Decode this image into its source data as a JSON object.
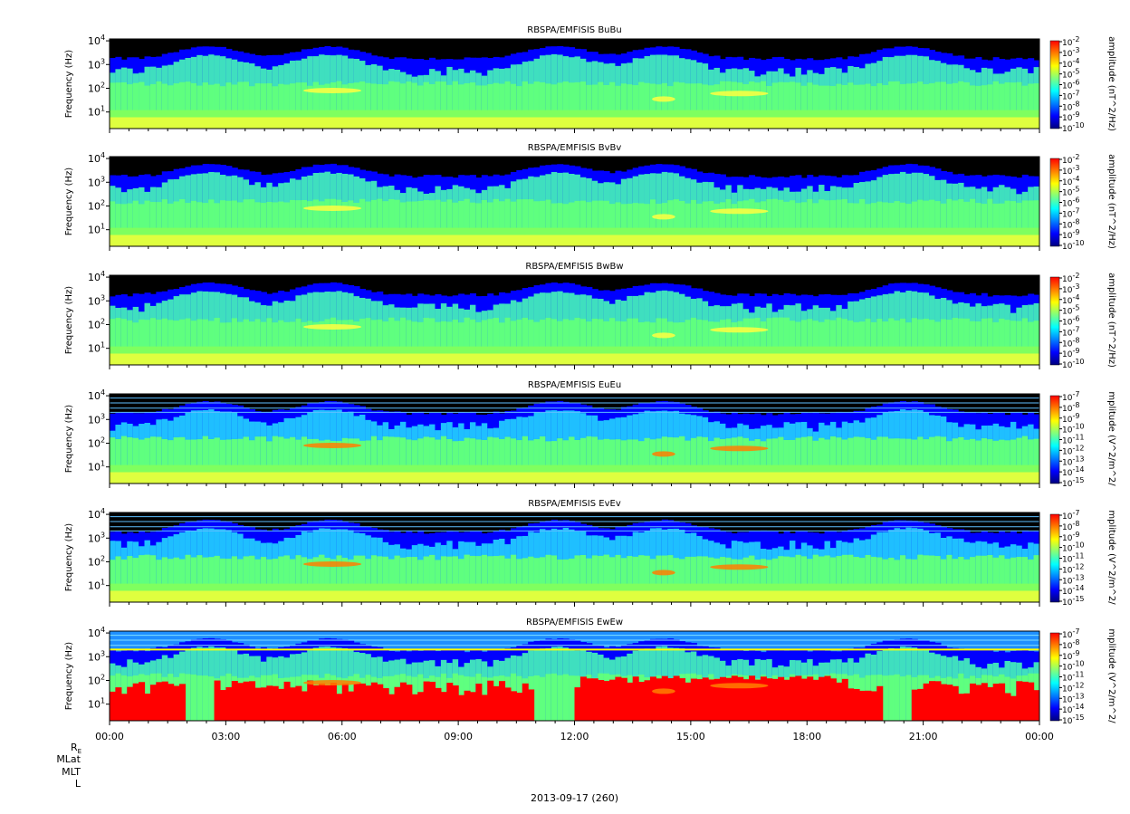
{
  "chart_data": {
    "type": "heatmap",
    "date_label": "2013-09-17 (260)",
    "x_axis": {
      "range": [
        "00:00",
        "24:00"
      ],
      "tick_labels": [
        "00:00",
        "03:00",
        "06:00",
        "09:00",
        "12:00",
        "15:00",
        "18:00",
        "21:00",
        "00:00"
      ]
    },
    "y_axis": {
      "label": "Frequency (Hz)",
      "scale": "log",
      "range_hz": [
        2,
        12000
      ],
      "tick_labels": [
        "10",
        "10",
        "10",
        "10"
      ],
      "tick_exponents": [
        "1",
        "2",
        "3",
        "4"
      ]
    },
    "ephemeris_labels": [
      "RE",
      "MLat",
      "MLT",
      "L"
    ],
    "colormap": [
      "#00007f",
      "#0000ff",
      "#007fff",
      "#00ffff",
      "#7fff7f",
      "#ffff00",
      "#ff7f00",
      "#ff0000"
    ],
    "panels": [
      {
        "title": "RBSPA/EMFISIS  BuBu",
        "colorbar_label": "amplitude (nT^2/Hz)",
        "colorbar_exponents": [
          "-2",
          "-3",
          "-4",
          "-5",
          "-6",
          "-7",
          "-8",
          "-9",
          "-10"
        ],
        "style": "B"
      },
      {
        "title": "RBSPA/EMFISIS  BvBv",
        "colorbar_label": "amplitude (nT^2/Hz)",
        "colorbar_exponents": [
          "-2",
          "-3",
          "-4",
          "-5",
          "-6",
          "-7",
          "-8",
          "-9",
          "-10"
        ],
        "style": "B"
      },
      {
        "title": "RBSPA/EMFISIS  BwBw",
        "colorbar_label": "amplitude (nT^2/Hz)",
        "colorbar_exponents": [
          "-2",
          "-3",
          "-4",
          "-5",
          "-6",
          "-7",
          "-8",
          "-9",
          "-10"
        ],
        "style": "B"
      },
      {
        "title": "RBSPA/EMFISIS  EuEu",
        "colorbar_label": "mplitude (V^2/m^2/",
        "colorbar_exponents": [
          "-7",
          "-8",
          "-9",
          "-10",
          "-11",
          "-12",
          "-13",
          "-14",
          "-15"
        ],
        "style": "E"
      },
      {
        "title": "RBSPA/EMFISIS  EvEv",
        "colorbar_label": "mplitude (V^2/m^2/",
        "colorbar_exponents": [
          "-7",
          "-8",
          "-9",
          "-10",
          "-11",
          "-12",
          "-13",
          "-14",
          "-15"
        ],
        "style": "E"
      },
      {
        "title": "RBSPA/EMFISIS  EwEw",
        "colorbar_label": "mplitude (V^2/m^2/",
        "colorbar_exponents": [
          "-7",
          "-8",
          "-9",
          "-10",
          "-11",
          "-12",
          "-13",
          "-14",
          "-15"
        ],
        "style": "Ew"
      }
    ]
  }
}
